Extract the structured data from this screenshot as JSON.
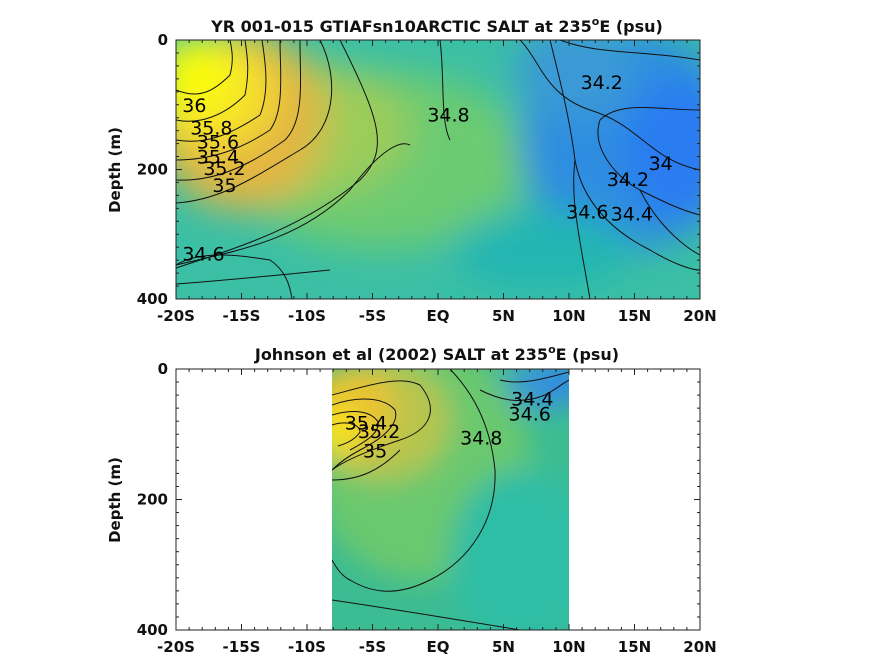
{
  "chart_data": [
    {
      "type": "heatmap",
      "title": "YR 001-015 GTIAFsn10ARCTIC SALT at 235",
      "title_sup": "o",
      "title_suffix": "E (psu)",
      "ylabel": "Depth (m)",
      "xlim": [
        -20,
        20
      ],
      "ylim": [
        400,
        0
      ],
      "x_ticks": [
        -20,
        -15,
        -10,
        -5,
        0,
        5,
        10,
        15,
        20
      ],
      "x_tick_labels": [
        "-20S",
        "-15S",
        "-10S",
        "-5S",
        "EQ",
        "5N",
        "10N",
        "15N",
        "20N"
      ],
      "y_ticks": [
        0,
        200,
        400
      ],
      "y_tick_labels": [
        "0",
        "200",
        "400"
      ],
      "contour_labels": [
        {
          "text": "36",
          "lat": -18.6,
          "depth": 100
        },
        {
          "text": "35.8",
          "lat": -17.3,
          "depth": 135
        },
        {
          "text": "35.6",
          "lat": -16.8,
          "depth": 157
        },
        {
          "text": "35.4",
          "lat": -16.8,
          "depth": 180
        },
        {
          "text": "35.2",
          "lat": -16.3,
          "depth": 198
        },
        {
          "text": "35",
          "lat": -16.3,
          "depth": 224
        },
        {
          "text": "34.6",
          "lat": -17.9,
          "depth": 330
        },
        {
          "text": "34.8",
          "lat": 0.8,
          "depth": 115
        },
        {
          "text": "34.2",
          "lat": 12.5,
          "depth": 65
        },
        {
          "text": "34",
          "lat": 17.0,
          "depth": 190
        },
        {
          "text": "34.2",
          "lat": 14.5,
          "depth": 215
        },
        {
          "text": "34.4",
          "lat": 14.8,
          "depth": 268
        },
        {
          "text": "34.6",
          "lat": 11.4,
          "depth": 265
        }
      ]
    },
    {
      "type": "heatmap",
      "title": "Johnson et al (2002) SALT at 235",
      "title_sup": "o",
      "title_suffix": "E (psu)",
      "ylabel": "Depth (m)",
      "xlim": [
        -20,
        20
      ],
      "ylim": [
        400,
        0
      ],
      "data_extent_lat": [
        -8,
        10
      ],
      "x_ticks": [
        -20,
        -15,
        -10,
        -5,
        0,
        5,
        10,
        15,
        20
      ],
      "x_tick_labels": [
        "-20S",
        "-15S",
        "-10S",
        "-5S",
        "EQ",
        "5N",
        "10N",
        "15N",
        "20N"
      ],
      "y_ticks": [
        0,
        200,
        400
      ],
      "y_tick_labels": [
        "0",
        "200",
        "400"
      ],
      "contour_labels": [
        {
          "text": "34.4",
          "lat": 7.2,
          "depth": 45
        },
        {
          "text": "34.6",
          "lat": 7.0,
          "depth": 68
        },
        {
          "text": "34.8",
          "lat": 3.3,
          "depth": 105
        },
        {
          "text": "35.2",
          "lat": -4.5,
          "depth": 95
        },
        {
          "text": "35",
          "lat": -4.8,
          "depth": 125
        },
        {
          "text": "35.4",
          "lat": -5.5,
          "depth": 82
        }
      ]
    }
  ]
}
